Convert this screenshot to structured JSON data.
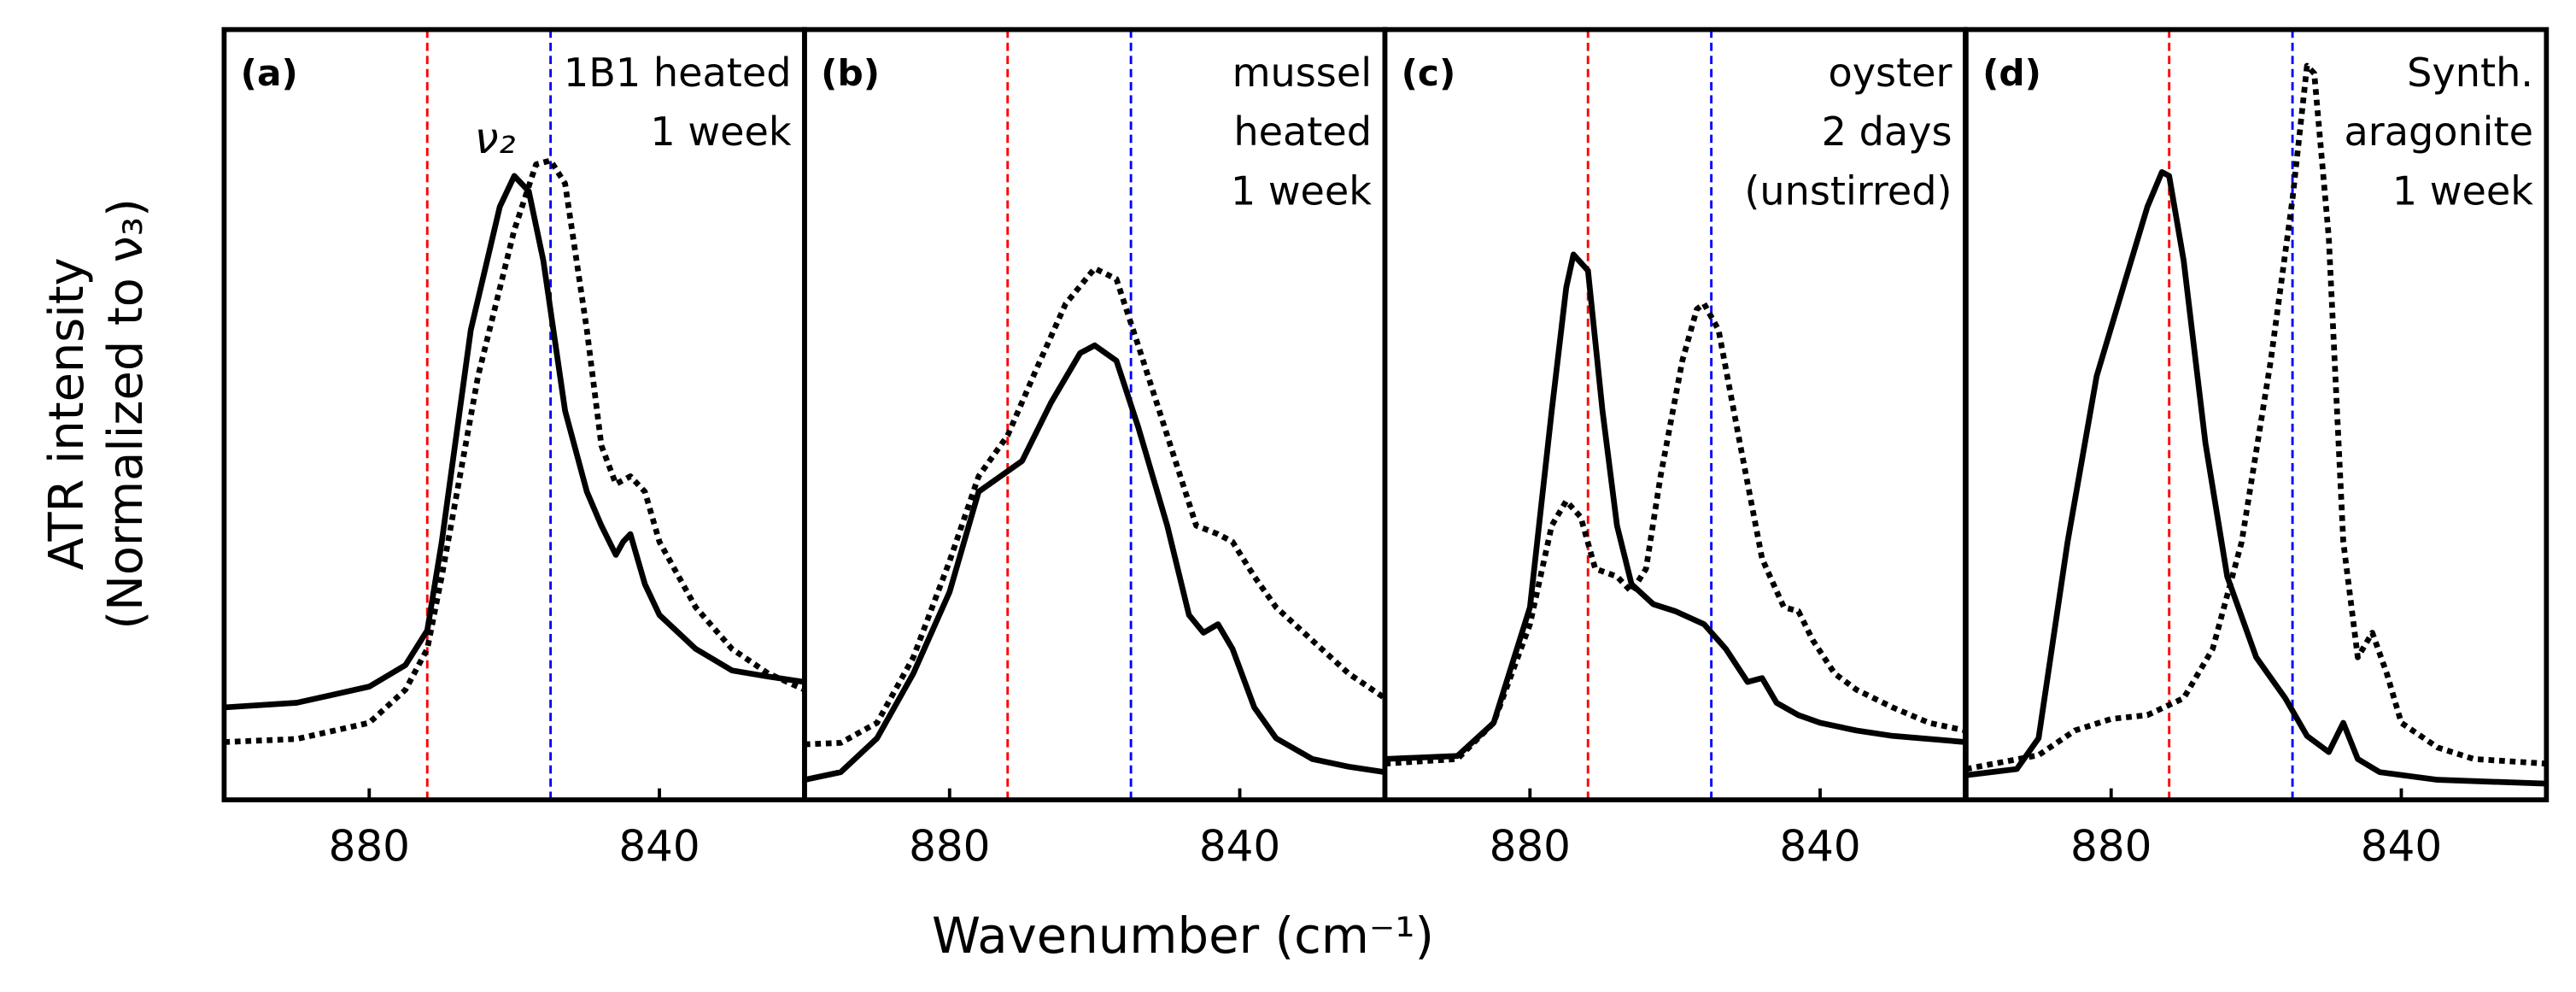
{
  "chart_data": [
    {
      "type": "line",
      "label": "(a)",
      "annotation": [
        "1B1 heated",
        "1 week"
      ],
      "peak_label": "ν₂",
      "xlim": [
        900,
        820
      ],
      "xticks": [
        880,
        840
      ],
      "ylim": [
        0,
        1
      ],
      "vlines": [
        {
          "x": 872,
          "color": "#ff0000"
        },
        {
          "x": 855,
          "color": "#0000ff"
        }
      ],
      "series": [
        {
          "color": "#000000",
          "style": "solid",
          "x": [
            900,
            890,
            880,
            875,
            872,
            870,
            866,
            862,
            860,
            858,
            856,
            853,
            850,
            848,
            846,
            845,
            844,
            842,
            840,
            835,
            830,
            825,
            820
          ],
          "values": [
            0.12,
            0.126,
            0.147,
            0.175,
            0.22,
            0.335,
            0.61,
            0.77,
            0.81,
            0.79,
            0.7,
            0.505,
            0.4,
            0.356,
            0.318,
            0.335,
            0.345,
            0.28,
            0.24,
            0.196,
            0.168,
            0.16,
            0.153
          ]
        },
        {
          "color": "#000000",
          "style": "dotted",
          "x": [
            900,
            890,
            880,
            875,
            872,
            870,
            865,
            860,
            857,
            855,
            853,
            850,
            848,
            846,
            844,
            842,
            840,
            835,
            830,
            825,
            820
          ],
          "values": [
            0.075,
            0.079,
            0.1,
            0.143,
            0.196,
            0.29,
            0.55,
            0.74,
            0.825,
            0.83,
            0.8,
            0.61,
            0.46,
            0.41,
            0.42,
            0.4,
            0.335,
            0.25,
            0.196,
            0.164,
            0.143
          ]
        }
      ]
    },
    {
      "type": "line",
      "label": "(b)",
      "annotation": [
        "mussel",
        "heated",
        "1 week"
      ],
      "xlim": [
        900,
        820
      ],
      "xticks": [
        880,
        840
      ],
      "ylim": [
        0,
        1
      ],
      "vlines": [
        {
          "x": 872,
          "color": "#ff0000"
        },
        {
          "x": 855,
          "color": "#0000ff"
        }
      ],
      "series": [
        {
          "color": "#000000",
          "style": "solid",
          "x": [
            900,
            895,
            890,
            885,
            880,
            876,
            873,
            870,
            866,
            862,
            860,
            857,
            854,
            850,
            847,
            845,
            843,
            841,
            838,
            835,
            830,
            825,
            820
          ],
          "values": [
            0.026,
            0.036,
            0.08,
            0.164,
            0.27,
            0.4,
            0.42,
            0.44,
            0.516,
            0.58,
            0.59,
            0.57,
            0.484,
            0.356,
            0.24,
            0.217,
            0.228,
            0.196,
            0.12,
            0.08,
            0.053,
            0.043,
            0.036
          ]
        },
        {
          "color": "#000000",
          "style": "dotted",
          "x": [
            900,
            895,
            890,
            885,
            880,
            876,
            872,
            868,
            864,
            860,
            857,
            854,
            850,
            846,
            843,
            841,
            838,
            835,
            830,
            825,
            820
          ],
          "values": [
            0.072,
            0.074,
            0.1,
            0.185,
            0.31,
            0.42,
            0.473,
            0.56,
            0.644,
            0.69,
            0.676,
            0.59,
            0.473,
            0.356,
            0.345,
            0.335,
            0.29,
            0.25,
            0.207,
            0.164,
            0.132
          ]
        }
      ]
    },
    {
      "type": "line",
      "label": "(c)",
      "annotation": [
        "oyster",
        "2 days",
        "(unstirred)"
      ],
      "xlim": [
        900,
        820
      ],
      "xticks": [
        880,
        840
      ],
      "ylim": [
        0,
        1
      ],
      "vlines": [
        {
          "x": 872,
          "color": "#ff0000"
        },
        {
          "x": 855,
          "color": "#0000ff"
        }
      ],
      "series": [
        {
          "color": "#000000",
          "style": "solid",
          "x": [
            900,
            890,
            885,
            880,
            877,
            875,
            874,
            872,
            870,
            868,
            866,
            863,
            860,
            856,
            853,
            850,
            848,
            846,
            843,
            840,
            835,
            830,
            820
          ],
          "values": [
            0.053,
            0.057,
            0.1,
            0.25,
            0.505,
            0.665,
            0.708,
            0.687,
            0.505,
            0.356,
            0.28,
            0.254,
            0.245,
            0.228,
            0.196,
            0.153,
            0.158,
            0.126,
            0.11,
            0.1,
            0.09,
            0.083,
            0.075
          ]
        },
        {
          "color": "#000000",
          "style": "dotted",
          "x": [
            900,
            890,
            885,
            880,
            877,
            875,
            873,
            871,
            868,
            866,
            864,
            862,
            859,
            857,
            856,
            854,
            851,
            848,
            845,
            843,
            841,
            838,
            835,
            830,
            825,
            820
          ],
          "values": [
            0.047,
            0.053,
            0.1,
            0.228,
            0.356,
            0.388,
            0.367,
            0.3,
            0.29,
            0.27,
            0.3,
            0.42,
            0.57,
            0.637,
            0.644,
            0.61,
            0.46,
            0.313,
            0.25,
            0.245,
            0.207,
            0.164,
            0.143,
            0.12,
            0.1,
            0.09
          ]
        }
      ]
    },
    {
      "type": "line",
      "label": "(d)",
      "annotation": [
        "Synth.",
        "aragonite",
        "1 week"
      ],
      "xlim": [
        900,
        820
      ],
      "xticks": [
        880,
        840
      ],
      "ylim": [
        0,
        1
      ],
      "vlines": [
        {
          "x": 872,
          "color": "#ff0000"
        },
        {
          "x": 855,
          "color": "#0000ff"
        }
      ],
      "series": [
        {
          "color": "#000000",
          "style": "solid",
          "x": [
            900,
            893,
            890,
            886,
            882,
            878,
            875,
            873,
            872,
            870,
            867,
            864,
            860,
            856,
            853,
            850,
            848,
            846,
            843,
            835,
            820
          ],
          "values": [
            0.032,
            0.04,
            0.08,
            0.335,
            0.55,
            0.676,
            0.77,
            0.815,
            0.81,
            0.7,
            0.463,
            0.29,
            0.185,
            0.132,
            0.083,
            0.062,
            0.1,
            0.053,
            0.036,
            0.026,
            0.021
          ]
        },
        {
          "color": "#000000",
          "style": "dotted",
          "x": [
            900,
            890,
            885,
            880,
            875,
            870,
            866,
            862,
            858,
            855,
            853,
            852,
            850,
            848,
            846,
            844,
            842,
            840,
            835,
            830,
            820
          ],
          "values": [
            0.04,
            0.058,
            0.09,
            0.105,
            0.11,
            0.132,
            0.196,
            0.335,
            0.57,
            0.78,
            0.953,
            0.943,
            0.73,
            0.335,
            0.185,
            0.217,
            0.164,
            0.1,
            0.068,
            0.053,
            0.047
          ]
        }
      ]
    }
  ],
  "xlabel": "Wavenumber (cm⁻¹)",
  "ylabel": [
    "ATR intensity",
    "(Normalized to ν₃)"
  ]
}
